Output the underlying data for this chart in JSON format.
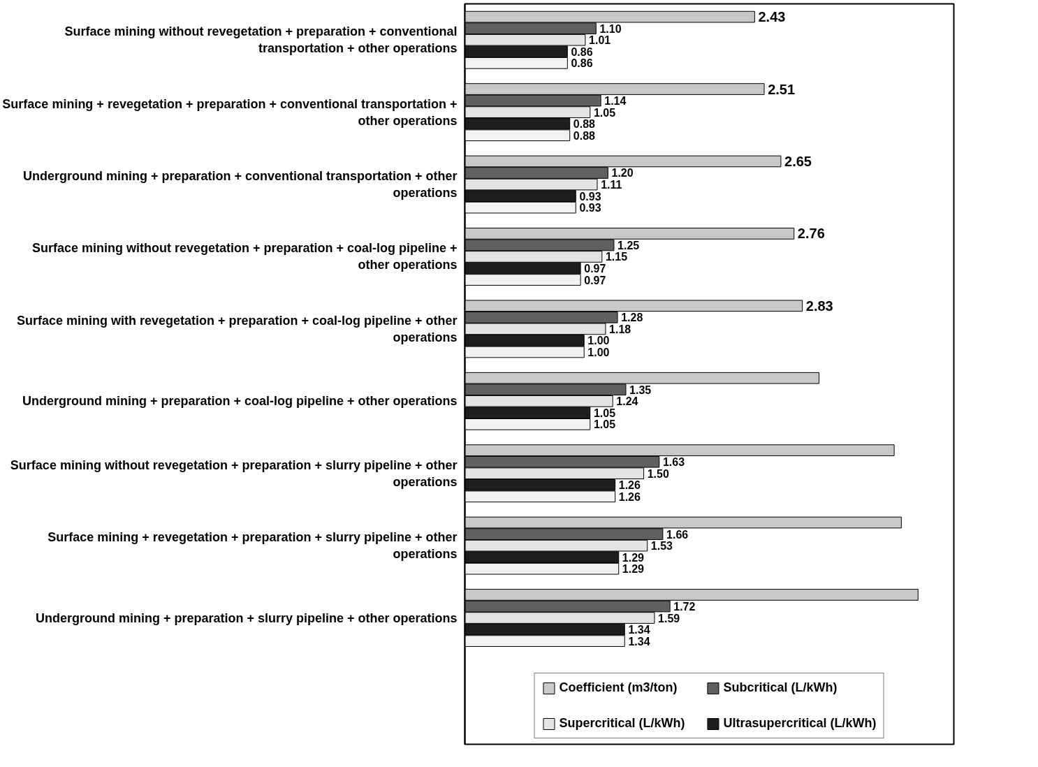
{
  "chart_data": {
    "type": "bar",
    "orientation": "horizontal",
    "categories": [
      "Surface mining without revegetation + preparation + conventional transportation + other operations",
      "Surface mining + revegetation + preparation + conventional transportation + other operations",
      "Underground mining + preparation + conventional transportation + other operations",
      "Surface mining without revegetation + preparation + coal-log pipeline + other operations",
      "Surface mining with revegetation + preparation + coal-log pipeline + other operations",
      "Underground mining + preparation + coal-log pipeline + other operations",
      "Surface mining without revegetation + preparation + slurry pipeline + other operations",
      "Surface mining + revegetation + preparation + slurry pipeline + other operations",
      "Underground mining + preparation + slurry pipeline + other operations"
    ],
    "series": [
      {
        "name": "Coefficient (m3/ton)",
        "color": "#c8c8c8",
        "values": [
          2.43,
          2.51,
          2.65,
          2.76,
          2.83,
          2.97,
          3.6,
          3.66,
          3.8
        ],
        "value_labels": [
          "2.43",
          "2.51",
          "2.65",
          "2.76",
          "2.83",
          null,
          null,
          null,
          null
        ]
      },
      {
        "name": "Subcritical (L/kWh)",
        "color": "#606060",
        "values": [
          1.1,
          1.14,
          1.2,
          1.25,
          1.28,
          1.35,
          1.63,
          1.66,
          1.72
        ],
        "value_labels": [
          "1.10",
          "1.14",
          "1.20",
          "1.25",
          "1.28",
          "1.35",
          "1.63",
          "1.66",
          "1.72"
        ]
      },
      {
        "name": "Supercritical (L/kWh)",
        "color": "#e4e4e4",
        "values": [
          1.01,
          1.05,
          1.11,
          1.15,
          1.18,
          1.24,
          1.5,
          1.53,
          1.59
        ],
        "value_labels": [
          "1.01",
          "1.05",
          "1.11",
          "1.15",
          "1.18",
          "1.24",
          "1.50",
          "1.53",
          "1.59"
        ]
      },
      {
        "name": "Ultrasupercritical (L/kWh)",
        "color": "#1e1e1e",
        "values": [
          0.86,
          0.88,
          0.93,
          0.97,
          1.0,
          1.05,
          1.26,
          1.29,
          1.34
        ],
        "value_labels": [
          "0.86",
          "0.88",
          "0.93",
          "0.97",
          "1.00",
          "1.05",
          "1.26",
          "1.29",
          "1.34"
        ]
      },
      {
        "color": "#f2f2f2",
        "values": [
          0.86,
          0.88,
          0.93,
          0.97,
          1.0,
          1.05,
          1.26,
          1.29,
          1.34
        ],
        "value_labels": [
          "0.86",
          "0.88",
          "0.93",
          "0.97",
          "1.00",
          "1.05",
          "1.26",
          "1.29",
          "1.34"
        ]
      }
    ],
    "xlim": [
      0,
      4.1
    ],
    "tick_labels": "y",
    "grid": false,
    "legend": "bottom"
  }
}
